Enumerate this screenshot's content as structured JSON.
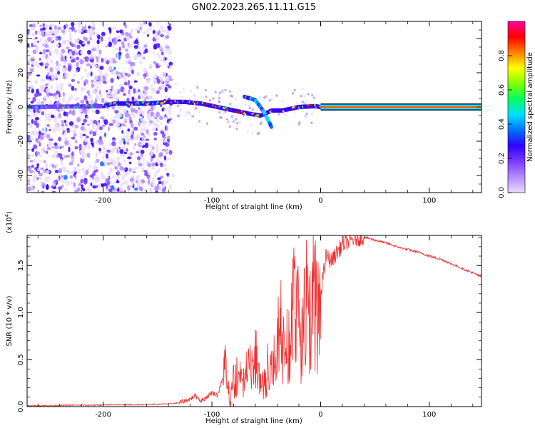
{
  "title": "GN02.2023.265.11.11.G15",
  "chart_data": [
    {
      "type": "heatmap",
      "xlabel": "Height of straight line (km)",
      "ylabel": "Frequency (Hz)",
      "xlim": [
        -270,
        148
      ],
      "ylim": [
        -50,
        50
      ],
      "x_ticks": [
        -200,
        -100,
        0,
        100
      ],
      "x_tick_labels": [
        "-200",
        "-100",
        "0",
        "100"
      ],
      "y_ticks": [
        -40,
        -20,
        0,
        20,
        40
      ],
      "y_tick_labels": [
        "-40",
        "-20",
        "0",
        "20",
        "40"
      ],
      "grid": false,
      "ridge": {
        "description_points": [
          {
            "x": -270,
            "y": 0
          },
          {
            "x": -200,
            "y": 0.5
          },
          {
            "x": -190,
            "y": 2
          },
          {
            "x": -160,
            "y": 2
          },
          {
            "x": -140,
            "y": 3
          },
          {
            "x": -125,
            "y": 3
          },
          {
            "x": -110,
            "y": 2
          },
          {
            "x": -95,
            "y": 0
          },
          {
            "x": -80,
            "y": -2
          },
          {
            "x": -65,
            "y": -4
          },
          {
            "x": -55,
            "y": -5
          },
          {
            "x": -45,
            "y": -2
          },
          {
            "x": -35,
            "y": -2
          },
          {
            "x": -20,
            "y": 0
          },
          {
            "x": -5,
            "y": 0.5
          },
          {
            "x": 0,
            "y": 0
          },
          {
            "x": 148,
            "y": 0
          }
        ],
        "branch": [
          {
            "x": -70,
            "y": 6
          },
          {
            "x": -60,
            "y": 4
          },
          {
            "x": -52,
            "y": -3
          },
          {
            "x": -45,
            "y": -12
          }
        ]
      },
      "colorbar": {
        "label": "Normalized spectral amplitude",
        "range": [
          0,
          1
        ],
        "ticks": [
          0.0,
          0.2,
          0.4,
          0.6,
          0.8
        ],
        "tick_labels": [
          "0.0",
          "0.2",
          "0.4",
          "0.6",
          "0.8"
        ],
        "colors": [
          "#e9dcff",
          "#b48cff",
          "#7a3cff",
          "#3000ff",
          "#0070ff",
          "#00e0ff",
          "#00ff60",
          "#80ff00",
          "#ffff00",
          "#ff8000",
          "#ff0000",
          "#ff00a0"
        ]
      }
    },
    {
      "type": "line",
      "xlabel": "Height of straight line (km)",
      "ylabel": "SNR (10 * v/v)",
      "y_scale_label": "(x10",
      "y_scale_exp": "4",
      "y_scale_close": ")",
      "xlim": [
        -270,
        148
      ],
      "ylim": [
        0,
        1.82
      ],
      "x_ticks": [
        -200,
        -100,
        0,
        100
      ],
      "x_tick_labels": [
        "-200",
        "-100",
        "0",
        "100"
      ],
      "y_ticks": [
        0.0,
        0.5,
        1.0,
        1.5
      ],
      "y_tick_labels": [
        "0.0",
        "0.5",
        "1.0",
        "1.5"
      ],
      "color": "#ee3030",
      "grid": false,
      "series": [
        {
          "x": [
            -270,
            -250,
            -230,
            -210,
            -190,
            -170,
            -150,
            -140,
            -130,
            -120,
            -115,
            -110,
            -105,
            -100,
            -95,
            -90,
            -87,
            -85,
            -83,
            -80,
            -75,
            -70,
            -65,
            -60,
            -55,
            -50,
            -45,
            -40,
            -37,
            -35,
            -30,
            -25,
            -22,
            -20,
            -17,
            -15,
            -10,
            -5,
            0,
            5,
            10,
            20,
            30,
            40,
            50,
            60,
            70,
            80,
            90,
            100,
            110,
            120,
            130,
            140,
            148
          ],
          "values": [
            0.01,
            0.01,
            0.015,
            0.015,
            0.02,
            0.02,
            0.025,
            0.03,
            0.04,
            0.08,
            0.12,
            0.06,
            0.1,
            0.15,
            0.12,
            0.3,
            0.55,
            0.3,
            0.2,
            0.3,
            0.35,
            0.4,
            0.45,
            0.5,
            0.4,
            0.35,
            0.55,
            0.7,
            1.1,
            0.9,
            0.8,
            1.2,
            1.7,
            0.9,
            1.0,
            1.6,
            1.2,
            1.5,
            1.2,
            1.6,
            1.55,
            1.72,
            1.78,
            1.8,
            1.77,
            1.74,
            1.7,
            1.67,
            1.64,
            1.6,
            1.57,
            1.52,
            1.47,
            1.42,
            1.38
          ]
        }
      ]
    }
  ]
}
